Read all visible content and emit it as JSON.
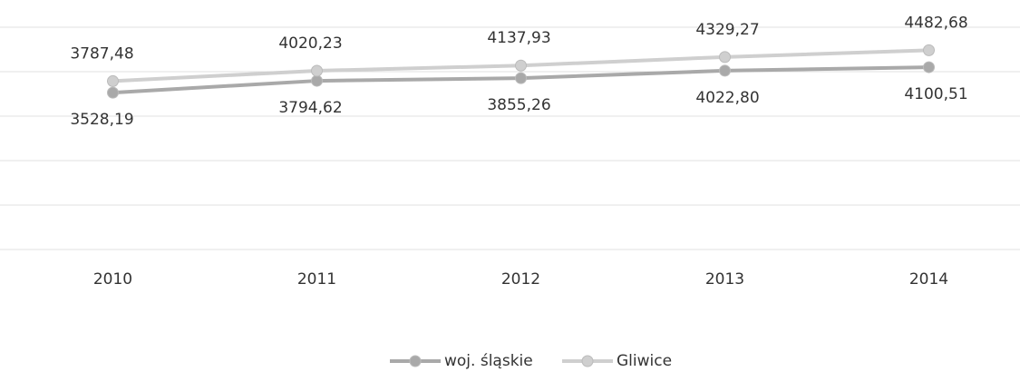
{
  "chart_data": {
    "type": "line",
    "categories": [
      "2010",
      "2011",
      "2012",
      "2013",
      "2014"
    ],
    "series": [
      {
        "name": "woj. śląskie",
        "color": "#a9a9a9",
        "values": [
          3528.19,
          3794.62,
          3855.26,
          4022.8,
          4100.51
        ],
        "value_labels": [
          "3528,19",
          "3794,62",
          "3855,26",
          "4022,80",
          "4100,51"
        ]
      },
      {
        "name": "Gliwice",
        "color": "#cfcfcf",
        "values": [
          3787.48,
          4020.23,
          4137.93,
          4329.27,
          4482.68
        ],
        "value_labels": [
          "3787,48",
          "4020,23",
          "4137,93",
          "4329,27",
          "4482,68"
        ]
      }
    ],
    "ylim": [
      0,
      5000
    ],
    "yticks": [
      0,
      1000,
      2000,
      3000,
      4000,
      5000
    ],
    "grid": true,
    "legend": "bottom"
  }
}
